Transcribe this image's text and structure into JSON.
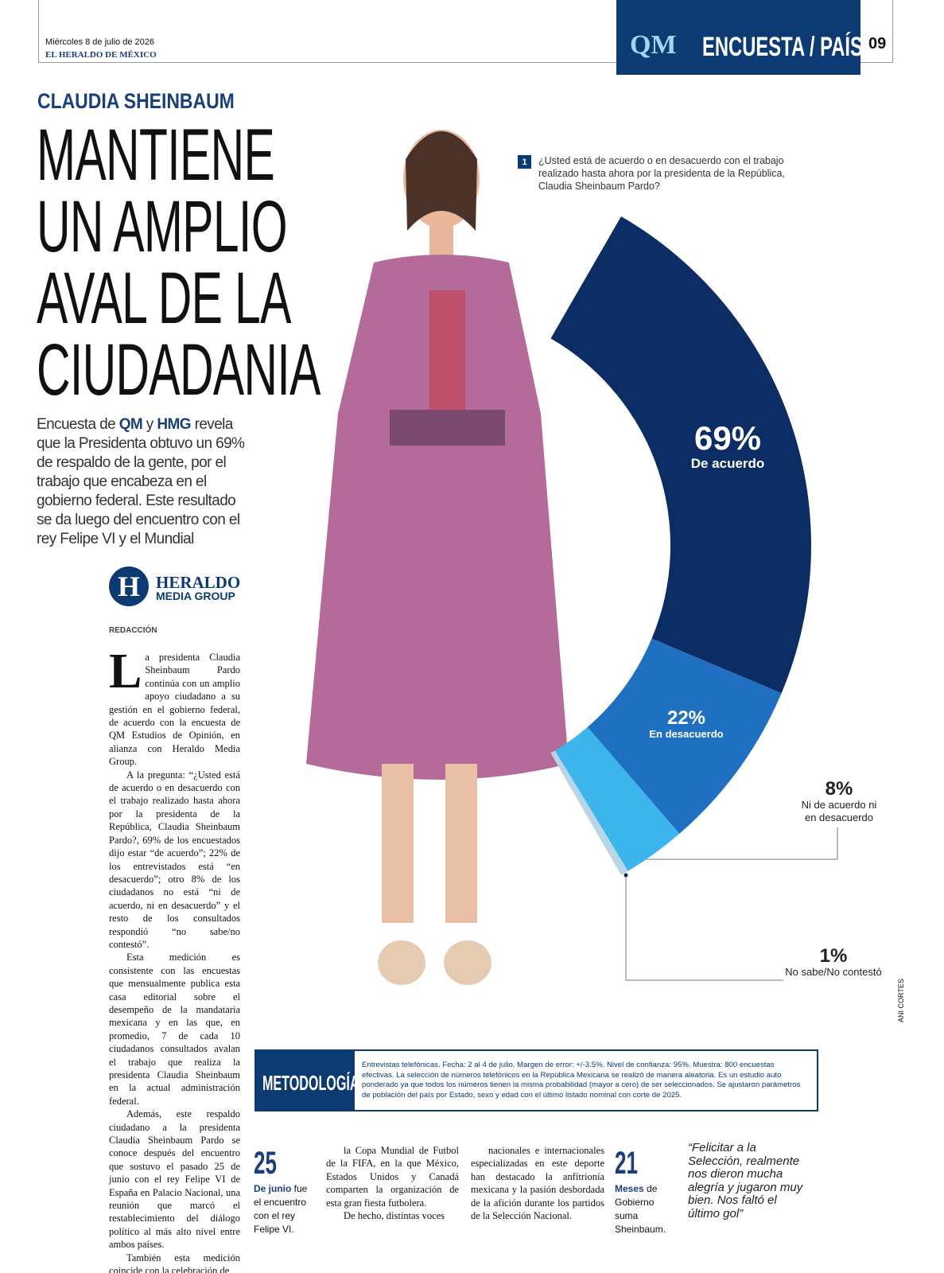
{
  "header": {
    "date": "Miércoles 8 de julio de 2026",
    "newspaper": "EL HERALDO DE MÉXICO",
    "logo": "QM",
    "section": "ENCUESTA / PAÍS",
    "page": "09"
  },
  "kicker": "CLAUDIA SHEINBAUM",
  "headline": [
    "MANTIENE",
    "UN AMPLIO",
    "AVAL DE LA",
    "CIUDADANIA"
  ],
  "dek": [
    "Encuesta de ",
    "QM",
    " y ",
    "HMG",
    " revela que la Presidenta obtuvo un 69% de respaldo de la gente, por el trabajo que encabeza en el gobierno federal. Este resultado se da luego del encuentro con el rey Felipe VI y el Mundial"
  ],
  "brand": {
    "mark": "H",
    "name": "HERALDO",
    "sub": "MEDIA GROUP"
  },
  "byline": "REDACCIÓN",
  "body": [
    "La presidenta Claudia Sheinbaum Pardo continúa con un amplio apoyo ciudadano a su gestión en el gobierno federal, de acuerdo con la encuesta de QM Estudios de Opinión, en alianza con Heraldo Media Group.",
    "A la pregunta: “¿Usted está de acuerdo o en desacuerdo con el trabajo realizado hasta ahora por la presidenta de la República, Claudia Sheinbaum Pardo?, 69% de los encuestados dijo estar “de acuerdo”; 22% de los entrevistados está “en desacuerdo”; otro 8% de los ciudadanos no está “ni de acuerdo, ni en desacuerdo” y el resto de los consultados respondió “no sabe/no contestó”.",
    "Esta medición es consistente con las encuestas que mensualmente publica esta casa editorial sobre el desempeño de la mandataria mexicana y en las que, en promedio, 7 de cada 10 ciudadanos consultados avalan el trabajo que realiza la presidenta Claudia Sheinbaum en la actual administración federal.",
    "Además, este respaldo ciudadano a la presidenta Claudia Sheinbaum Pardo se conoce después del encuentro que sostuvo el pasado 25 de junio con el rey Felipe VI de España en Palacio Nacional, una reunión que marcó el restablecimiento del diálogo político al más alto nivel entre ambos países.",
    "También esta medición coincide con la celebración de"
  ],
  "body2": [
    "la Copa Mundial de Futbol de la FIFA, en la que México, Estados Unidos y Canadá comparten la organización de esta gran fiesta futbolera.",
    "De hecho, distintas voces"
  ],
  "body3": [
    "nacionales e internacionales especializadas en este deporte han destacado la anfitrionía mexicana y la pasión desbordada de la afición durante los partidos de la Selección Nacional."
  ],
  "stats": [
    {
      "number": "25",
      "label": "De junio",
      "text": " fue el encuentro con el rey Felipe VI."
    },
    {
      "number": "21",
      "label": "Meses",
      "text": " de Gobierno suma Sheinbaum."
    }
  ],
  "quote": "“Felicitar a la Selección, realmente nos dieron mucha alegría y jugaron muy bien. Nos faltó el último gol”",
  "credit": "ANI CORTES",
  "methodology": {
    "label": "METODOLOGÍA",
    "text": "Entrevistas telefónicas. Fecha: 2 al 4 de julio. Margen de error: +/-3.5%. Nivel de confianza: 95%. Muestra: 800 encuestas efectivas. La selección de números telefónicos en la República Mexicana se realizó de manera aleatoria. Es un estudio auto ponderado ya que todos los números tienen la misma probabilidad (mayor a cero) de ser seleccionados. Se ajustaron parámetros de población del país por Estado, sexo y edad con el último listado nominal con corte de 2025."
  },
  "chart_data": {
    "type": "pie",
    "question_number": "1",
    "title": "¿Usted está de acuerdo o en desacuerdo con el trabajo realizado hasta ahora por la presidenta de la República, Claudia Sheinbaum Pardo?",
    "categories": [
      "De acuerdo",
      "En desacuerdo",
      "Ni de acuerdo ni en desacuerdo",
      "No sabe/No contestó"
    ],
    "values": [
      69,
      22,
      8,
      1
    ],
    "value_labels": [
      "69%",
      "22%",
      "8%",
      "1%"
    ],
    "colors": [
      "#0c2d63",
      "#1f70c1",
      "#3cb4ec",
      "#b9d6e6"
    ]
  }
}
